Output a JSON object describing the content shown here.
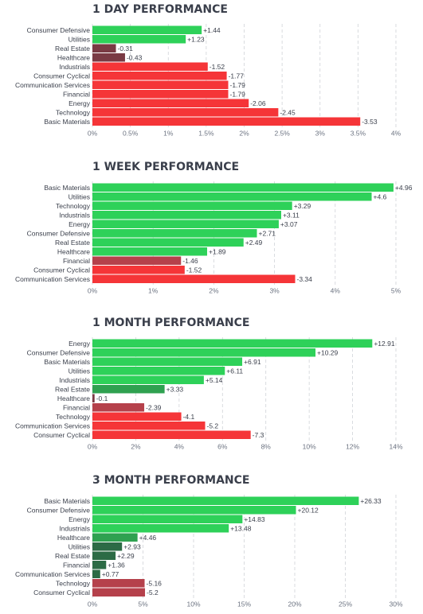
{
  "colors": {
    "strong_up": "#2ed159",
    "mid_up": "#2fa150",
    "weak_up": "#2c6b45",
    "weak_down": "#7a3a44",
    "mid_down": "#b5414b",
    "strong_down": "#f53538",
    "grid": "#d0d3d8",
    "text": "#3a3f4b"
  },
  "chart_data": [
    {
      "type": "bar",
      "orientation": "horizontal",
      "title": "1 DAY PERFORMANCE",
      "tick_suffix": "%",
      "xlim": [
        0,
        4
      ],
      "ticks": [
        0,
        0.5,
        1,
        1.5,
        2,
        2.5,
        3,
        3.5,
        4
      ],
      "tick_labels": [
        "0%",
        "0.5%",
        "1%",
        "1.5%",
        "2%",
        "2.5%",
        "3%",
        "3.5%",
        "4%"
      ],
      "categories": [
        "Consumer Defensive",
        "Utilities",
        "Real Estate",
        "Healthcare",
        "Industrials",
        "Consumer Cyclical",
        "Communication Services",
        "Financial",
        "Energy",
        "Technology",
        "Basic Materials"
      ],
      "values": [
        1.44,
        1.23,
        -0.31,
        -0.43,
        -1.52,
        -1.77,
        -1.79,
        -1.79,
        -2.06,
        -2.45,
        -3.53
      ],
      "value_labels": [
        "+1.44",
        "+1.23",
        "-0.31",
        "-0.43",
        "-1.52",
        "-1.77",
        "-1.79",
        "-1.79",
        "-2.06",
        "-2.45",
        "-3.53"
      ]
    },
    {
      "type": "bar",
      "orientation": "horizontal",
      "title": "1 WEEK PERFORMANCE",
      "tick_suffix": "%",
      "xlim": [
        0,
        5
      ],
      "ticks": [
        0,
        1,
        2,
        3,
        4,
        5
      ],
      "tick_labels": [
        "0%",
        "1%",
        "2%",
        "3%",
        "4%",
        "5%"
      ],
      "categories": [
        "Basic Materials",
        "Utilities",
        "Technology",
        "Industrials",
        "Energy",
        "Consumer Defensive",
        "Real Estate",
        "Healthcare",
        "Financial",
        "Consumer Cyclical",
        "Communication Services"
      ],
      "values": [
        4.96,
        4.6,
        3.29,
        3.11,
        3.07,
        2.71,
        2.49,
        1.89,
        -1.46,
        -1.52,
        -3.34
      ],
      "value_labels": [
        "+4.96",
        "+4.6",
        "+3.29",
        "+3.11",
        "+3.07",
        "+2.71",
        "+2.49",
        "+1.89",
        "-1.46",
        "-1.52",
        "-3.34"
      ]
    },
    {
      "type": "bar",
      "orientation": "horizontal",
      "title": "1 MONTH PERFORMANCE",
      "tick_suffix": "%",
      "xlim": [
        0,
        14
      ],
      "ticks": [
        0,
        2,
        4,
        6,
        8,
        10,
        12,
        14
      ],
      "tick_labels": [
        "0%",
        "2%",
        "4%",
        "6%",
        "8%",
        "10%",
        "12%",
        "14%"
      ],
      "categories": [
        "Energy",
        "Consumer Defensive",
        "Basic Materials",
        "Utilities",
        "Industrials",
        "Real Estate",
        "Healthcare",
        "Financial",
        "Technology",
        "Communication Services",
        "Consumer Cyclical"
      ],
      "values": [
        12.91,
        10.29,
        6.91,
        6.11,
        5.14,
        3.33,
        -0.1,
        -2.39,
        -4.1,
        -5.2,
        -7.3
      ],
      "value_labels": [
        "+12.91",
        "+10.29",
        "+6.91",
        "+6.11",
        "+5.14",
        "+3.33",
        "-0.1",
        "-2.39",
        "-4.1",
        "-5.2",
        "-7.3"
      ]
    },
    {
      "type": "bar",
      "orientation": "horizontal",
      "title": "3 MONTH PERFORMANCE",
      "tick_suffix": "%",
      "xlim": [
        0,
        30
      ],
      "ticks": [
        0,
        5,
        10,
        15,
        20,
        25,
        30
      ],
      "tick_labels": [
        "0%",
        "5%",
        "10%",
        "15%",
        "20%",
        "25%",
        "30%"
      ],
      "categories": [
        "Basic Materials",
        "Consumer Defensive",
        "Energy",
        "Industrials",
        "Healthcare",
        "Utilities",
        "Real Estate",
        "Financial",
        "Communication Services",
        "Technology",
        "Consumer Cyclical"
      ],
      "values": [
        26.33,
        20.12,
        14.83,
        13.48,
        4.46,
        2.93,
        2.29,
        1.36,
        0.77,
        -5.16,
        -5.2
      ],
      "value_labels": [
        "+26.33",
        "+20.12",
        "+14.83",
        "+13.48",
        "+4.46",
        "+2.93",
        "+2.29",
        "+1.36",
        "+0.77",
        "-5.16",
        "-5.2"
      ]
    }
  ]
}
